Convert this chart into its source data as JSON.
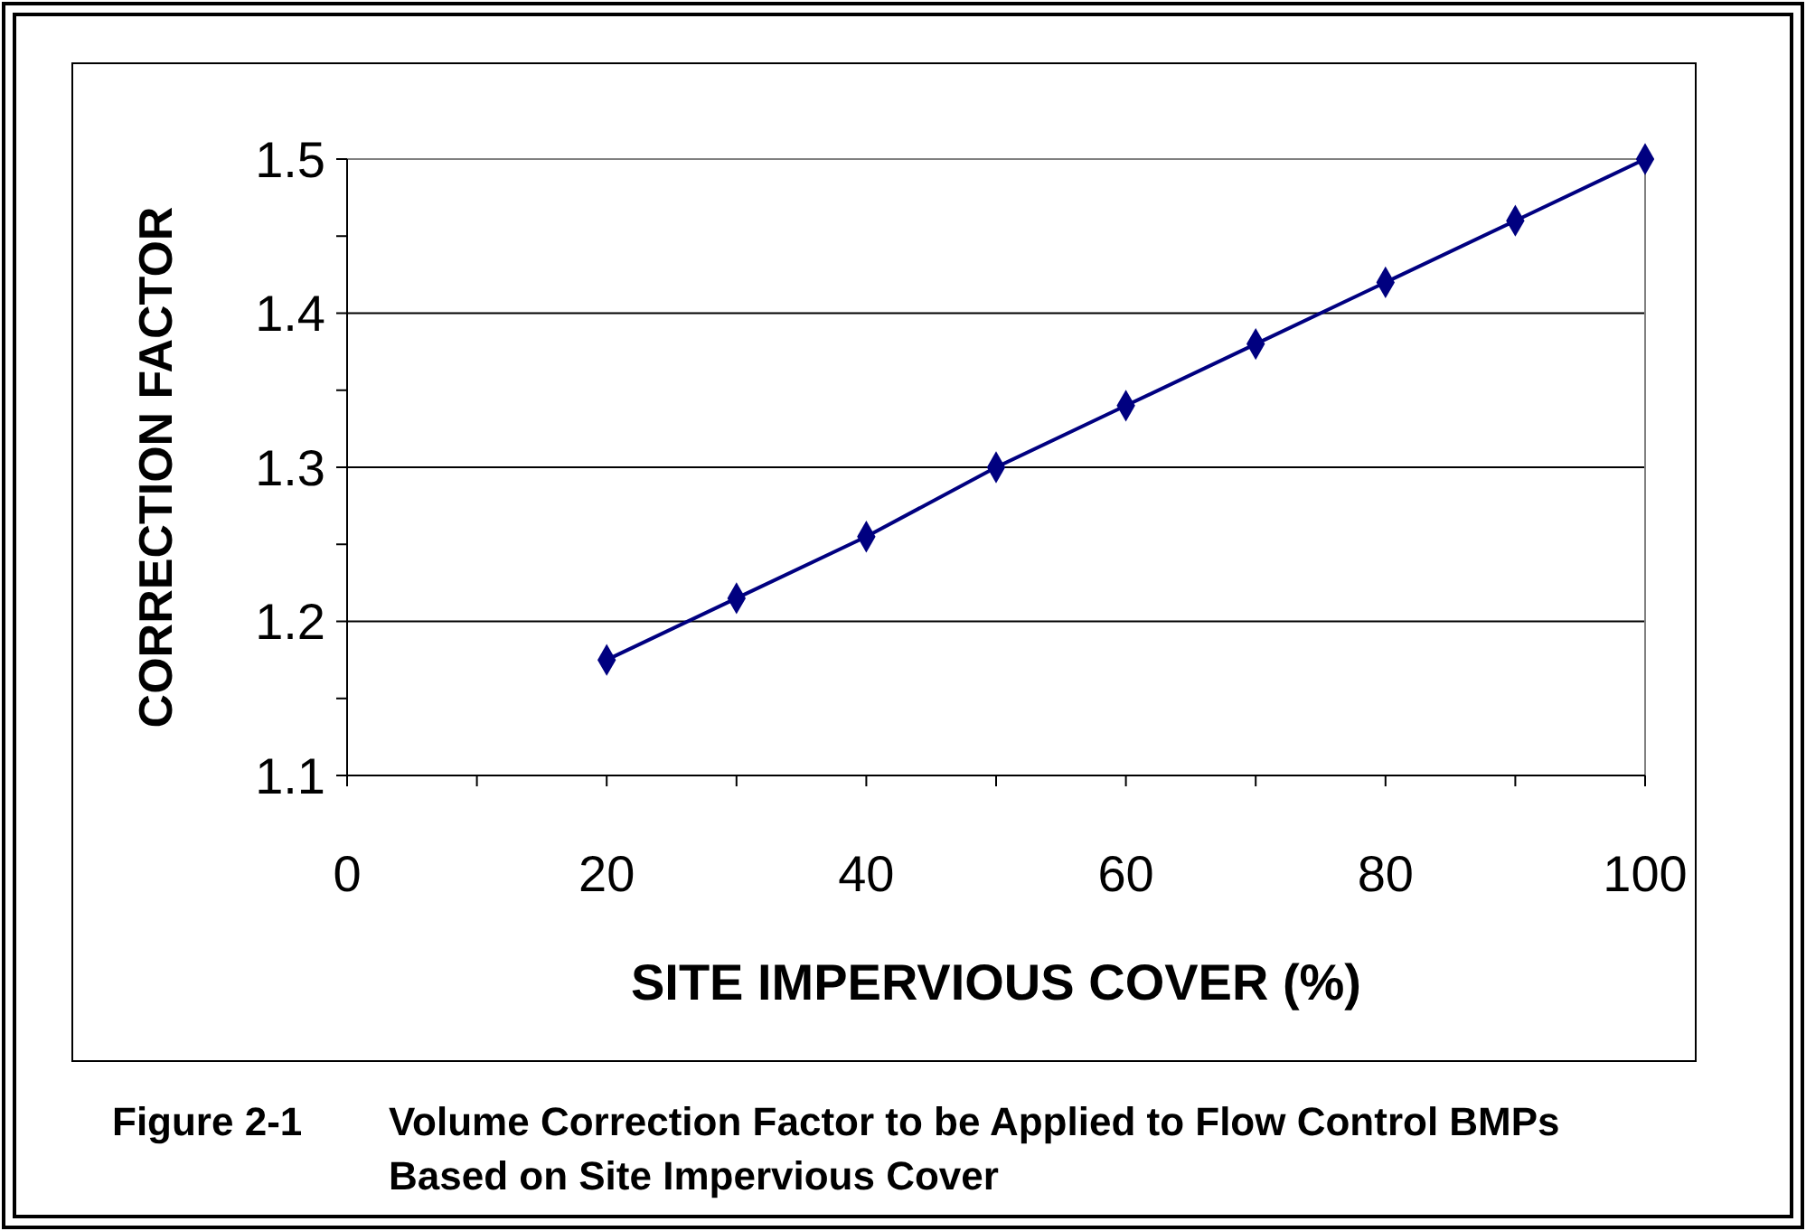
{
  "chart_data": {
    "type": "line",
    "xlabel": "SITE IMPERVIOUS COVER (%)",
    "ylabel": "CORRECTION FACTOR",
    "x": [
      20,
      30,
      40,
      50,
      60,
      70,
      80,
      90,
      100
    ],
    "series": [
      {
        "color": "#000080",
        "values": [
          1.175,
          1.215,
          1.255,
          1.3,
          1.34,
          1.38,
          1.42,
          1.46,
          1.5
        ]
      }
    ],
    "xlim": [
      0,
      100
    ],
    "ylim": [
      1.1,
      1.5
    ],
    "xticks": [
      0,
      {
        "value": 10,
        "label": null
      },
      20,
      {
        "value": 30,
        "label": null
      },
      40,
      {
        "value": 50,
        "label": null
      },
      60,
      {
        "value": 70,
        "label": null
      },
      80,
      {
        "value": 90,
        "label": null
      },
      100
    ],
    "yticks": [
      1.1,
      {
        "value": 1.15,
        "label": null
      },
      1.2,
      {
        "value": 1.25,
        "label": null
      },
      1.3,
      {
        "value": 1.35,
        "label": null
      },
      1.4,
      {
        "value": 1.45,
        "label": null
      },
      1.5
    ],
    "grid": "y",
    "marker": "diamond",
    "line_style": "solid",
    "annotations": [
      "Figure 2-1    Volume Correction Factor to be Applied to Flow Control BMPs Based on Site Impervious Cover"
    ]
  }
}
